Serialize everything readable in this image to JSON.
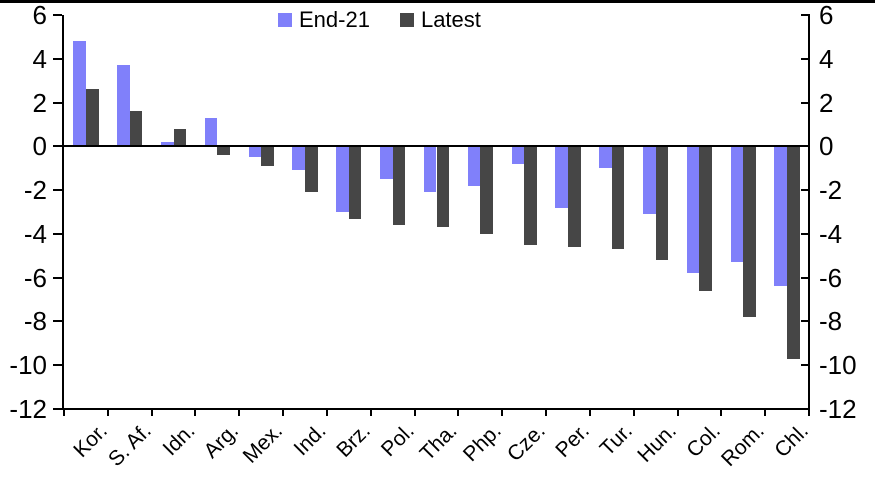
{
  "chart_data": {
    "type": "bar",
    "title": "",
    "xlabel": "",
    "ylabel": "",
    "categories": [
      "Kor.",
      "S. Af.",
      "Idn.",
      "Arg.",
      "Mex.",
      "Ind.",
      "Brz.",
      "Pol.",
      "Tha.",
      "Php.",
      "Cze.",
      "Per.",
      "Tur.",
      "Hun.",
      "Col.",
      "Rom.",
      "Chl."
    ],
    "series": [
      {
        "name": "End-21",
        "color": "#8080FA",
        "values": [
          4.8,
          3.7,
          0.2,
          1.3,
          -0.5,
          -1.1,
          -3.0,
          -1.5,
          -2.1,
          -1.8,
          -0.8,
          -2.8,
          -1.0,
          -3.1,
          -5.8,
          -5.3,
          -6.4
        ]
      },
      {
        "name": "Latest",
        "color": "#464646",
        "values": [
          2.6,
          1.6,
          0.8,
          -0.4,
          -0.9,
          -2.1,
          -3.3,
          -3.6,
          -3.7,
          -4.0,
          -4.5,
          -4.6,
          -4.7,
          -5.2,
          -6.6,
          -7.8,
          -9.7
        ]
      }
    ],
    "ylim": [
      -12,
      6
    ],
    "ytick_step": 2,
    "yticks": [
      "6",
      "4",
      "2",
      "0",
      "-2",
      "-4",
      "-6",
      "-8",
      "-10",
      "-12"
    ],
    "dual_axis": true,
    "legend_position": "top-center",
    "grid": false,
    "axis_color": "#000000",
    "background_color": "#FFFFFF"
  }
}
